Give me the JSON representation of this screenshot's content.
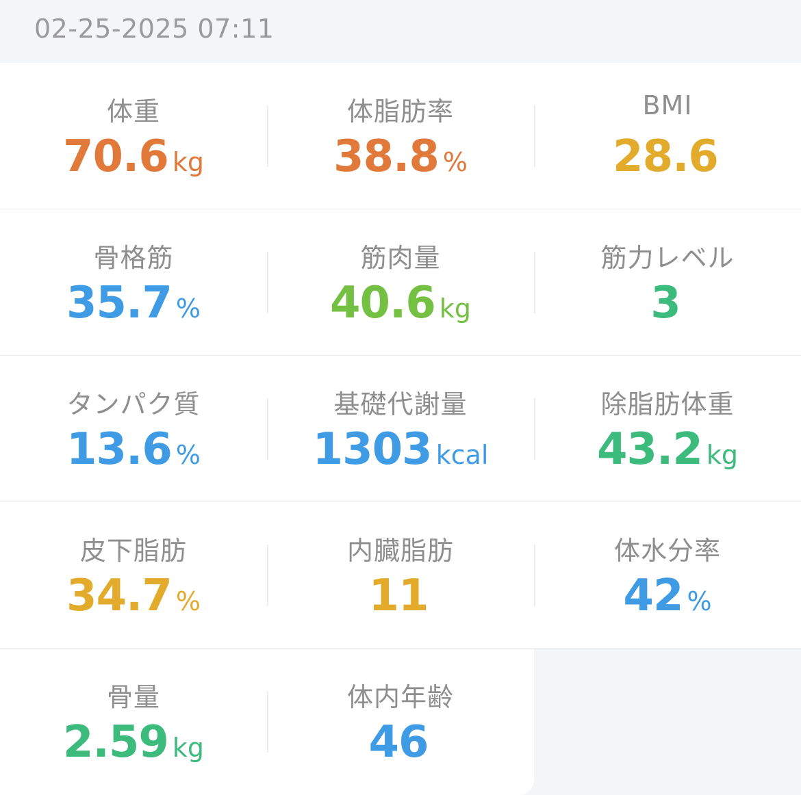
{
  "timestamp": "02-25-2025 07:11",
  "metrics": [
    {
      "label": "体重",
      "value": "70.6",
      "unit": "kg",
      "color": "#e0793a"
    },
    {
      "label": "体脂肪率",
      "value": "38.8",
      "unit": "%",
      "color": "#e0793a"
    },
    {
      "label": "BMI",
      "value": "28.6",
      "unit": "",
      "color": "#e2ab2c"
    },
    {
      "label": "骨格筋",
      "value": "35.7",
      "unit": "%",
      "color": "#3e9be4"
    },
    {
      "label": "筋肉量",
      "value": "40.6",
      "unit": "kg",
      "color": "#74c043"
    },
    {
      "label": "筋力レベル",
      "value": "3",
      "unit": "",
      "color": "#3dbb7d"
    },
    {
      "label": "タンパク質",
      "value": "13.6",
      "unit": "%",
      "color": "#3e9be4"
    },
    {
      "label": "基礎代謝量",
      "value": "1303",
      "unit": "kcal",
      "color": "#3e9be4"
    },
    {
      "label": "除脂肪体重",
      "value": "43.2",
      "unit": "kg",
      "color": "#3dbb7d"
    },
    {
      "label": "皮下脂肪",
      "value": "34.7",
      "unit": "%",
      "color": "#e2ab2c"
    },
    {
      "label": "内臓脂肪",
      "value": "11",
      "unit": "",
      "color": "#e2ab2c"
    },
    {
      "label": "体水分率",
      "value": "42",
      "unit": "%",
      "color": "#3e9be4"
    },
    {
      "label": "骨量",
      "value": "2.59",
      "unit": "kg",
      "color": "#3dbb7d"
    },
    {
      "label": "体内年齢",
      "value": "46",
      "unit": "",
      "color": "#3e9be4"
    }
  ]
}
